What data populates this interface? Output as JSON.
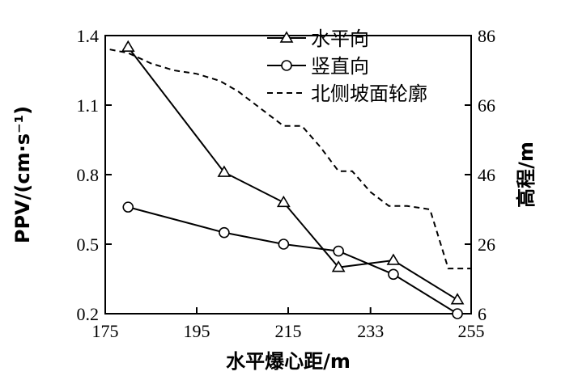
{
  "chart_data": {
    "type": "line",
    "title": "",
    "xlabel": "水平爆心距/m",
    "ylabel_left": "PPV/(cm·s⁻¹)",
    "ylabel_right": "高程/m",
    "xlim": [
      175,
      255
    ],
    "ylim_left": [
      0.2,
      1.4
    ],
    "ylim_right": [
      6,
      86
    ],
    "x_ticks": [
      175,
      195,
      215,
      233,
      255
    ],
    "x_tick_labels": [
      "175",
      "195",
      "215",
      "233",
      "255"
    ],
    "y_left_ticks": [
      0.2,
      0.5,
      0.8,
      1.1,
      1.4
    ],
    "y_left_tick_labels": [
      "0.2",
      "0.5",
      "0.8",
      "1.1",
      "1.4"
    ],
    "y_right_ticks": [
      6,
      26,
      46,
      66,
      86
    ],
    "y_right_tick_labels": [
      "6",
      "26",
      "46",
      "66",
      "86"
    ],
    "grid": false,
    "legend_position": "top-right",
    "series": [
      {
        "name": "水平向",
        "axis": "left",
        "marker": "triangle",
        "line": "solid",
        "x": [
          180,
          201,
          214,
          226,
          238,
          252
        ],
        "y": [
          1.35,
          0.81,
          0.68,
          0.4,
          0.43,
          0.26
        ]
      },
      {
        "name": "竖直向",
        "axis": "left",
        "marker": "circle",
        "line": "solid",
        "x": [
          180,
          201,
          214,
          226,
          238,
          252
        ],
        "y": [
          0.66,
          0.55,
          0.5,
          0.47,
          0.37,
          0.2
        ]
      },
      {
        "name": "北侧坡面轮廓",
        "axis": "right",
        "marker": "none",
        "line": "dashed",
        "x": [
          176,
          180,
          185,
          190,
          195,
          200,
          204,
          210,
          214,
          218,
          222,
          226,
          229,
          233,
          237,
          241,
          246,
          250,
          255
        ],
        "y": [
          82,
          81,
          78,
          76,
          75,
          73,
          70,
          64,
          60,
          60,
          54,
          47,
          47,
          41,
          37,
          37,
          36,
          19,
          19
        ]
      }
    ]
  }
}
